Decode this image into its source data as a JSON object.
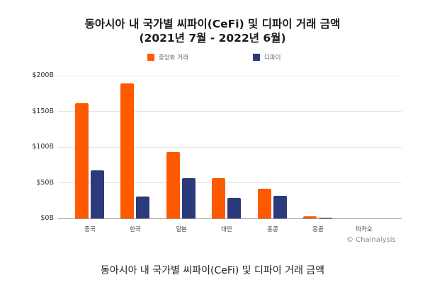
{
  "title_line1": "동아시아 내 국가별 씨파이(CeFi) 및 디파이 거래 금액",
  "title_line2": "(2021년 7월 - 2022년 6월)",
  "caption": "동아시아 내 국가별 씨파이(CeFi) 및 디파이 거래 금액",
  "credit": "© Chainalysis",
  "legend": [
    {
      "label": "중앙화 거래",
      "color": "#FF5A00"
    },
    {
      "label": "디파이",
      "color": "#2B3A7A"
    }
  ],
  "y_ticks": [
    "$200B",
    "$150B",
    "$100B",
    "$50B",
    "$0B"
  ],
  "chart_data": {
    "type": "bar",
    "title": "동아시아 내 국가별 씨파이(CeFi) 및 디파이 거래 금액 (2021년 7월 - 2022년 6월)",
    "xlabel": "",
    "ylabel": "",
    "ylim": [
      0,
      200
    ],
    "unit": "$B",
    "grid": true,
    "legend_position": "top",
    "categories": [
      "중국",
      "한국",
      "일본",
      "대만",
      "홍콩",
      "몽골",
      "마카오"
    ],
    "series": [
      {
        "name": "중앙화 거래",
        "color": "#FF5A00",
        "values": [
          161,
          189,
          93,
          56,
          42,
          3,
          0
        ]
      },
      {
        "name": "디파이",
        "color": "#2B3A7A",
        "values": [
          67,
          31,
          56,
          29,
          32,
          1.5,
          0
        ]
      }
    ]
  }
}
